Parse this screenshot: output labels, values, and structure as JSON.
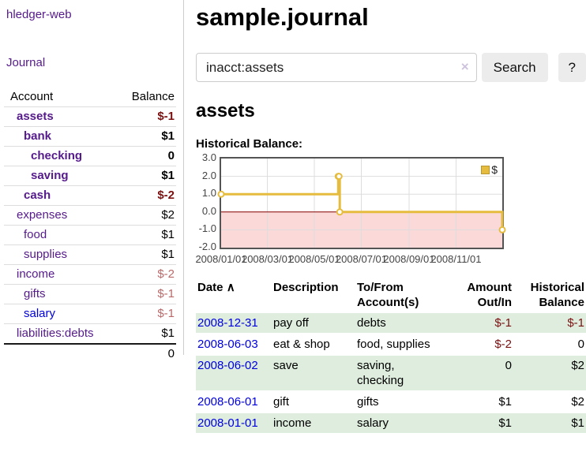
{
  "app": {
    "brand": "hledger-web",
    "nav_journal": "Journal"
  },
  "sidebar": {
    "header": {
      "account": "Account",
      "balance": "Balance"
    },
    "accounts": [
      {
        "name": "assets",
        "indent": 0,
        "inview": true,
        "balance": "$-1",
        "neg": "strong"
      },
      {
        "name": "bank",
        "indent": 1,
        "inview": true,
        "balance": "$1",
        "neg": ""
      },
      {
        "name": "checking",
        "indent": 2,
        "inview": true,
        "balance": "0",
        "neg": ""
      },
      {
        "name": "saving",
        "indent": 2,
        "inview": true,
        "balance": "$1",
        "neg": ""
      },
      {
        "name": "cash",
        "indent": 1,
        "inview": true,
        "balance": "$-2",
        "neg": "strong"
      },
      {
        "name": "expenses",
        "indent": 0,
        "inview": false,
        "balance": "$2",
        "neg": ""
      },
      {
        "name": "food",
        "indent": 1,
        "inview": false,
        "balance": "$1",
        "neg": ""
      },
      {
        "name": "supplies",
        "indent": 1,
        "inview": false,
        "balance": "$1",
        "neg": ""
      },
      {
        "name": "income",
        "indent": 0,
        "inview": false,
        "balance": "$-2",
        "neg": "muted"
      },
      {
        "name": "gifts",
        "indent": 1,
        "inview": false,
        "balance": "$-1",
        "neg": "muted"
      },
      {
        "name": "salary",
        "indent": 1,
        "inview": false,
        "balance": "$-1",
        "neg": "muted",
        "blue": true
      },
      {
        "name": "liabilities:debts",
        "indent": 0,
        "inview": false,
        "balance": "$1",
        "neg": ""
      }
    ],
    "total": "0"
  },
  "main": {
    "title": "sample.journal",
    "search": {
      "value": "inacct:assets",
      "clear_icon": "×",
      "button": "Search",
      "help": "?"
    },
    "account_heading": "assets",
    "chart_label": "Historical Balance:"
  },
  "chart_data": {
    "type": "line",
    "step": true,
    "title": "Historical Balance",
    "series": [
      {
        "name": "$",
        "color": "#e6bc3f",
        "points": [
          [
            "2008-01-01",
            1
          ],
          [
            "2008-06-01",
            2
          ],
          [
            "2008-06-02",
            2
          ],
          [
            "2008-06-03",
            0
          ],
          [
            "2008-12-31",
            -1
          ]
        ]
      }
    ],
    "xlim": [
      "2008-01-01",
      "2008-12-31"
    ],
    "ylim": [
      -2,
      3
    ],
    "yticks": [
      {
        "v": 3,
        "label": "3.0"
      },
      {
        "v": 2,
        "label": "2.0"
      },
      {
        "v": 1,
        "label": "1.0"
      },
      {
        "v": 0,
        "label": "0.0"
      },
      {
        "v": -1,
        "label": "-1.0"
      },
      {
        "v": -2,
        "label": "-2.0"
      }
    ],
    "xticks": [
      {
        "d": "2008-01-01",
        "label": "2008/01/01"
      },
      {
        "d": "2008-03-01",
        "label": "2008/03/01"
      },
      {
        "d": "2008-05-01",
        "label": "2008/05/01"
      },
      {
        "d": "2008-07-01",
        "label": "2008/07/01"
      },
      {
        "d": "2008-09-01",
        "label": "2008/09/01"
      },
      {
        "d": "2008-11-01",
        "label": "2008/11/01"
      }
    ],
    "grid": true,
    "legend_position": "top-right",
    "zero_line_color": "#8b0000",
    "negative_region_color": "#fbd9d9",
    "grid_color": "#dddddd",
    "border_color": "#545454"
  },
  "register": {
    "columns": {
      "date": "Date",
      "description": "Description",
      "accounts": "To/From Account(s)",
      "amount": "Amount Out/In",
      "balance": "Historical Balance"
    },
    "sort_indicator": "∧",
    "rows": [
      {
        "date": "2008-12-31",
        "description": "pay off",
        "accounts": "debts",
        "amount": "$-1",
        "amount_neg": true,
        "balance": "$-1",
        "balance_neg": true,
        "shaded": true
      },
      {
        "date": "2008-06-03",
        "description": "eat & shop",
        "accounts": "food, supplies",
        "amount": "$-2",
        "amount_neg": true,
        "balance": "0",
        "balance_neg": false,
        "shaded": false
      },
      {
        "date": "2008-06-02",
        "description": "save",
        "accounts": "saving,\nchecking",
        "amount": "0",
        "amount_neg": false,
        "balance": "$2",
        "balance_neg": false,
        "shaded": true
      },
      {
        "date": "2008-06-01",
        "description": "gift",
        "accounts": "gifts",
        "amount": "$1",
        "amount_neg": false,
        "balance": "$2",
        "balance_neg": false,
        "shaded": false
      },
      {
        "date": "2008-01-01",
        "description": "income",
        "accounts": "salary",
        "amount": "$1",
        "amount_neg": false,
        "balance": "$1",
        "balance_neg": false,
        "shaded": true
      }
    ]
  },
  "colors": {
    "link_purple": "#551a8b",
    "link_blue": "#0000dd",
    "negative_strong": "#7a1010",
    "negative_muted": "#b86a6a",
    "row_shade_green": "#deedde",
    "series_gold": "#e6bc3f"
  }
}
